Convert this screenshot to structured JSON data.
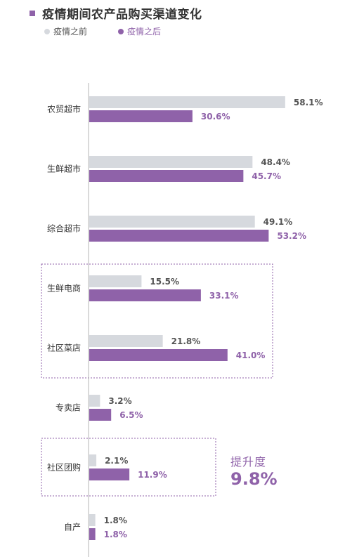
{
  "title": "疫情期间农产品购买渠道变化",
  "colors": {
    "before": "#d6d9de",
    "after": "#8f62a9",
    "before_text": "#555555",
    "after_text": "#8f62a9"
  },
  "uplift": {
    "label": "提升度",
    "value": "9.8%"
  },
  "chart_data": {
    "type": "bar",
    "orientation": "horizontal",
    "categories": [
      "农贸超市",
      "生鲜超市",
      "综合超市",
      "生鲜电商",
      "社区菜店",
      "专卖店",
      "社区团购",
      "自产"
    ],
    "series": [
      {
        "name": "疫情之前",
        "values": [
          58.1,
          48.4,
          49.1,
          15.5,
          21.8,
          3.2,
          2.1,
          1.8
        ],
        "labels": [
          "58.1%",
          "48.4%",
          "49.1%",
          "15.5%",
          "21.8%",
          "3.2%",
          "2.1%",
          "1.8%"
        ]
      },
      {
        "name": "疫情之后",
        "values": [
          30.6,
          45.7,
          53.2,
          33.1,
          41.0,
          6.5,
          11.9,
          1.8
        ],
        "labels": [
          "30.6%",
          "45.7%",
          "53.2%",
          "33.1%",
          "41.0%",
          "6.5%",
          "11.9%",
          "1.8%"
        ]
      }
    ],
    "xlim": [
      0,
      60
    ],
    "legend": "top-left",
    "grid": false
  }
}
